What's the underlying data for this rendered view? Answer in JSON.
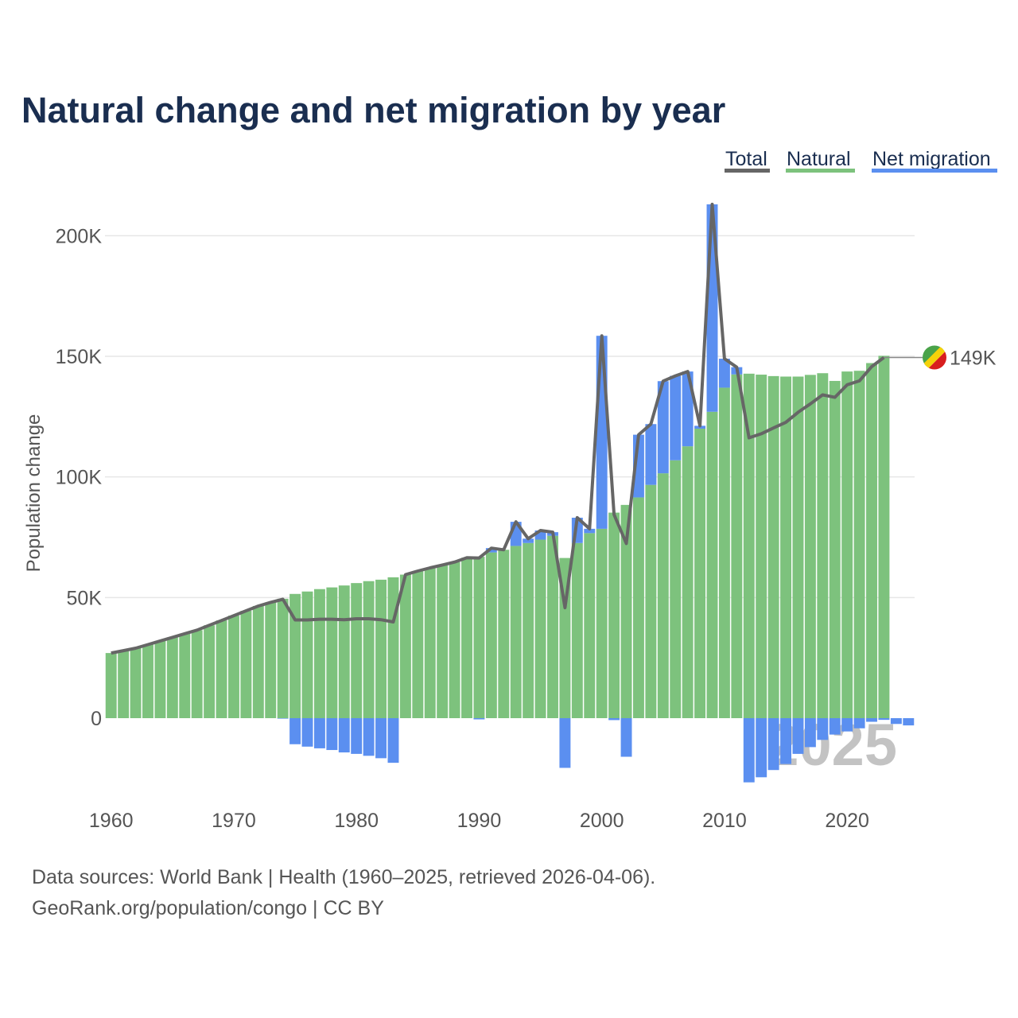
{
  "chart_data": {
    "type": "bar",
    "title": "Natural change and net migration by year",
    "ylabel": "Population change",
    "xlabel": "",
    "ylim": [
      -34000,
      225000
    ],
    "yticks": [
      0,
      50000,
      100000,
      150000,
      200000
    ],
    "ytick_labels": [
      "0",
      "50K",
      "100K",
      "150K",
      "200K"
    ],
    "xticks": [
      1960,
      1970,
      1980,
      1990,
      2000,
      2010,
      2020
    ],
    "xtick_labels": [
      "1960",
      "1970",
      "1980",
      "1990",
      "2000",
      "2010",
      "2020"
    ],
    "legend_position": "top-right",
    "legend": [
      "Total",
      "Natural",
      "Net migration"
    ],
    "colors": {
      "total": "#666666",
      "natural": "#7dc27d",
      "migration": "#5b8ff0",
      "grid": "#e6e6e6",
      "title": "#1a2e50"
    },
    "years": [
      1960,
      1961,
      1962,
      1963,
      1964,
      1965,
      1966,
      1967,
      1968,
      1969,
      1970,
      1971,
      1972,
      1973,
      1974,
      1975,
      1976,
      1977,
      1978,
      1979,
      1980,
      1981,
      1982,
      1983,
      1984,
      1985,
      1986,
      1987,
      1988,
      1989,
      1990,
      1991,
      1992,
      1993,
      1994,
      1995,
      1996,
      1997,
      1998,
      1999,
      2000,
      2001,
      2002,
      2003,
      2004,
      2005,
      2006,
      2007,
      2008,
      2009,
      2010,
      2011,
      2012,
      2013,
      2014,
      2015,
      2016,
      2017,
      2018,
      2019,
      2020,
      2021,
      2022,
      2023,
      2024,
      2025
    ],
    "series": [
      {
        "name": "Natural",
        "values": [
          27000,
          28000,
          29000,
          30500,
          32000,
          33500,
          35000,
          36500,
          38500,
          40500,
          42500,
          44500,
          46500,
          48000,
          49500,
          51500,
          52500,
          53500,
          54200,
          55000,
          56000,
          56800,
          57400,
          58400,
          59500,
          61000,
          62300,
          63500,
          64700,
          66500,
          66900,
          68700,
          69800,
          71400,
          72600,
          74000,
          75600,
          66400,
          72600,
          76700,
          78500,
          85200,
          88400,
          91500,
          96700,
          101500,
          106900,
          112700,
          120000,
          127000,
          137000,
          142500,
          142800,
          142400,
          141800,
          141600,
          141600,
          142300,
          143000,
          139800,
          143700,
          144000,
          147200,
          150200,
          0,
          0
        ]
      },
      {
        "name": "Net migration",
        "values": [
          0,
          0,
          0,
          0,
          0,
          0,
          0,
          0,
          0,
          0,
          0,
          0,
          0,
          0,
          -200,
          -10800,
          -11800,
          -12500,
          -13200,
          -14200,
          -14800,
          -15600,
          -16600,
          -18500,
          0,
          0,
          0,
          0,
          0,
          0,
          -500,
          1800,
          0,
          10000,
          1800,
          3800,
          1500,
          -20600,
          10500,
          1800,
          80000,
          -800,
          -16000,
          26000,
          25200,
          38200,
          35000,
          31000,
          1200,
          86000,
          12000,
          3000,
          -26600,
          -24500,
          -21500,
          -19000,
          -14800,
          -12000,
          -9000,
          -6800,
          -5500,
          -4200,
          -1500,
          -700,
          -2400,
          -3000
        ]
      },
      {
        "name": "Total",
        "values": [
          27000,
          28000,
          29000,
          30500,
          32000,
          33500,
          35000,
          36500,
          38500,
          40500,
          42500,
          44500,
          46500,
          48000,
          49300,
          40700,
          40700,
          41000,
          41000,
          40800,
          41200,
          41200,
          40800,
          39900,
          59500,
          61000,
          62300,
          63500,
          64700,
          66500,
          66400,
          70500,
          69800,
          81400,
          74400,
          77800,
          77100,
          45800,
          83100,
          78500,
          158500,
          84400,
          72400,
          117500,
          121900,
          139700,
          141900,
          143700,
          121200,
          213000,
          149000,
          145500,
          116200,
          117900,
          120300,
          122600,
          126800,
          130300,
          134000,
          133000,
          138200,
          139800,
          145700,
          149500,
          null,
          null
        ]
      }
    ],
    "latest_label": "149K",
    "watermark_year": "2025"
  },
  "source": {
    "line1": "Data sources: World Bank | Health (1960–2025, retrieved 2026-04-06).",
    "line2": "GeoRank.org/population/congo | CC BY"
  }
}
